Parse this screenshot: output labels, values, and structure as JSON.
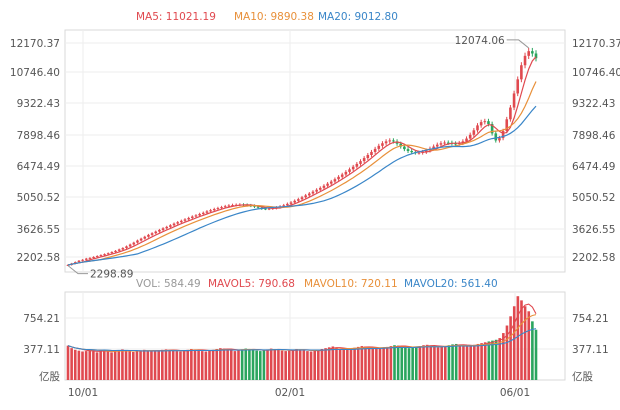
{
  "chart_data": [
    {
      "type": "candlestick",
      "legend_position": "top",
      "legend": [
        {
          "label": "MA5: 11021.19",
          "color": "#e0494f"
        },
        {
          "label": "MA10: 9890.38",
          "color": "#e8903a"
        },
        {
          "label": "MA20: 9012.80",
          "color": "#3a86c8"
        }
      ],
      "y_ticks": [
        "12170.37",
        "10746.40",
        "9322.43",
        "7898.46",
        "6474.49",
        "5050.52",
        "3626.55",
        "2202.58"
      ],
      "ylim": [
        2000,
        12300
      ],
      "x_ticks": [
        "10/01",
        "02/01",
        "06/01"
      ],
      "up_color": "#e0494f",
      "down_color": "#2aa55e",
      "annotations": {
        "high": "12074.06",
        "low": "2298.89"
      },
      "close_series": [
        2300,
        2360,
        2420,
        2480,
        2520,
        2570,
        2600,
        2640,
        2680,
        2720,
        2760,
        2800,
        2850,
        2900,
        2960,
        3020,
        3090,
        3170,
        3250,
        3340,
        3420,
        3500,
        3580,
        3650,
        3720,
        3790,
        3860,
        3920,
        3990,
        4060,
        4120,
        4180,
        4240,
        4300,
        4360,
        4410,
        4470,
        4520,
        4580,
        4630,
        4680,
        4720,
        4760,
        4800,
        4830,
        4850,
        4860,
        4870,
        4860,
        4840,
        4820,
        4780,
        4740,
        4700,
        4690,
        4700,
        4720,
        4750,
        4790,
        4840,
        4900,
        4960,
        5030,
        5100,
        5180,
        5260,
        5340,
        5420,
        5500,
        5580,
        5670,
        5760,
        5850,
        5950,
        6050,
        6150,
        6260,
        6370,
        6480,
        6600,
        6720,
        6850,
        6980,
        7110,
        7240,
        7370,
        7480,
        7560,
        7600,
        7560,
        7460,
        7340,
        7230,
        7150,
        7100,
        7080,
        7080,
        7110,
        7170,
        7250,
        7340,
        7420,
        7480,
        7510,
        7500,
        7470,
        7460,
        7490,
        7560,
        7680,
        7840,
        8030,
        8240,
        8380,
        8420,
        8300,
        7900,
        7600,
        7700,
        8000,
        8500,
        9000,
        9600,
        10200,
        10800,
        11200,
        11400,
        11300,
        11100
      ]
    },
    {
      "type": "bar",
      "legend_position": "top",
      "legend": [
        {
          "label": "VOL: 584.49",
          "color": "#999999"
        },
        {
          "label": "MAVOL5: 790.68",
          "color": "#e0494f"
        },
        {
          "label": "MAVOL10: 720.11",
          "color": "#e8903a"
        },
        {
          "label": "MAVOL20: 561.40",
          "color": "#3a86c8"
        }
      ],
      "y_ticks": [
        "754.21",
        "377.11"
      ],
      "unit": "亿股",
      "ylim": [
        0,
        1050
      ],
      "x_ticks": [
        "10/01",
        "02/01",
        "06/01"
      ],
      "values": [
        410,
        380,
        360,
        350,
        340,
        345,
        355,
        340,
        330,
        350,
        360,
        340,
        330,
        345,
        355,
        365,
        350,
        340,
        335,
        345,
        355,
        360,
        350,
        340,
        345,
        355,
        360,
        365,
        355,
        350,
        345,
        340,
        350,
        360,
        370,
        365,
        355,
        345,
        340,
        350,
        360,
        370,
        380,
        375,
        365,
        355,
        345,
        355,
        365,
        375,
        370,
        360,
        350,
        345,
        355,
        365,
        375,
        370,
        360,
        350,
        345,
        350,
        360,
        370,
        365,
        355,
        345,
        340,
        350,
        360,
        370,
        380,
        390,
        400,
        385,
        370,
        360,
        365,
        375,
        385,
        395,
        405,
        400,
        390,
        380,
        370,
        375,
        385,
        395,
        405,
        415,
        410,
        400,
        390,
        380,
        385,
        395,
        405,
        415,
        420,
        410,
        400,
        390,
        395,
        405,
        415,
        425,
        430,
        420,
        410,
        400,
        410,
        420,
        430,
        440,
        450,
        460,
        470,
        480,
        500,
        560,
        650,
        760,
        880,
        1000,
        950,
        880,
        820,
        700,
        600
      ]
    }
  ]
}
